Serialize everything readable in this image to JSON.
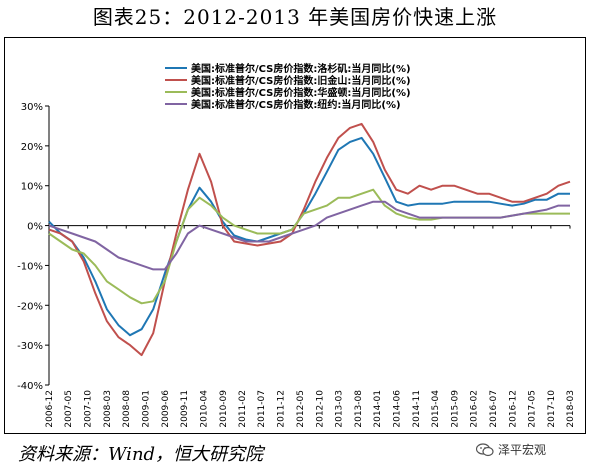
{
  "figure": {
    "title": "图表25：2012-2013 年美国房价快速上涨",
    "source": "资料来源：Wind，恒大研究院",
    "watermark": "泽平宏观"
  },
  "chart_data": {
    "type": "line",
    "ylabel": "",
    "xlabel": "",
    "ylim": [
      -40,
      30
    ],
    "yticks": [
      -40,
      -30,
      -20,
      -10,
      0,
      10,
      20,
      30
    ],
    "ytick_labels": [
      "-40%",
      "-30%",
      "-20%",
      "-10%",
      "0%",
      "10%",
      "20%",
      "30%"
    ],
    "grid": false,
    "legend_position": "top",
    "x": [
      "2006-12",
      "2007-03",
      "2007-06",
      "2007-09",
      "2007-12",
      "2008-03",
      "2008-06",
      "2008-09",
      "2008-12",
      "2009-03",
      "2009-06",
      "2009-09",
      "2009-12",
      "2010-03",
      "2010-06",
      "2010-09",
      "2010-12",
      "2011-03",
      "2011-06",
      "2011-09",
      "2011-12",
      "2012-03",
      "2012-06",
      "2012-09",
      "2012-12",
      "2013-03",
      "2013-06",
      "2013-09",
      "2013-12",
      "2014-03",
      "2014-06",
      "2014-09",
      "2014-12",
      "2015-03",
      "2015-06",
      "2015-09",
      "2015-12",
      "2016-03",
      "2016-06",
      "2016-09",
      "2016-12",
      "2017-03",
      "2017-06",
      "2017-09",
      "2017-12",
      "2018-03"
    ],
    "xtick_labels": [
      "2006-12",
      "2007-05",
      "2007-10",
      "2008-03",
      "2008-08",
      "2009-01",
      "2009-06",
      "2009-11",
      "2010-04",
      "2010-09",
      "2011-02",
      "2011-07",
      "2011-12",
      "2012-05",
      "2012-10",
      "2013-03",
      "2013-08",
      "2014-01",
      "2014-06",
      "2014-11",
      "2015-04",
      "2015-09",
      "2016-02",
      "2016-07",
      "2016-12",
      "2017-05",
      "2017-10",
      "2018-03"
    ],
    "series": [
      {
        "name": "美国:标准普尔/CS房价指数:洛杉矶:当月同比(%)",
        "color": "#1f77b4",
        "values": [
          1,
          -2,
          -4,
          -8,
          -14,
          -21,
          -25,
          -27.5,
          -26,
          -21,
          -12,
          -4,
          4,
          9.5,
          6,
          1,
          -2.5,
          -3.5,
          -4,
          -3,
          -2,
          -1,
          3,
          8,
          13.5,
          19,
          21,
          22,
          18,
          12,
          6,
          5,
          5.5,
          5.5,
          5.5,
          6,
          6,
          6,
          6,
          5.5,
          5,
          5.5,
          6.5,
          6.5,
          8,
          8
        ]
      },
      {
        "name": "美国:标准普尔/CS房价指数:旧金山:当月同比(%)",
        "color": "#c0504d",
        "values": [
          -1,
          -2,
          -4,
          -9,
          -17,
          -24,
          -28,
          -30,
          -32.5,
          -27,
          -14,
          -2,
          9,
          18,
          11,
          0,
          -4,
          -4.5,
          -5,
          -4.5,
          -4,
          -2,
          4,
          11,
          17,
          22,
          24.5,
          25.5,
          21,
          14,
          9,
          8,
          10,
          9,
          10,
          10,
          9,
          8,
          8,
          7,
          6,
          6,
          7,
          8,
          10,
          11
        ]
      },
      {
        "name": "美国:标准普尔/CS房价指数:华盛顿:当月同比(%)",
        "color": "#9bbb59",
        "values": [
          -2,
          -4,
          -6,
          -7,
          -10,
          -14,
          -16,
          -18,
          -19.5,
          -19,
          -14,
          -4,
          4,
          7,
          5,
          2,
          0,
          -1,
          -2,
          -2,
          -2,
          -1,
          3,
          4,
          5,
          7,
          7,
          8,
          9,
          5,
          3,
          2,
          1.5,
          1.5,
          2,
          2,
          2,
          2,
          2,
          2,
          2.5,
          3,
          3,
          3,
          3,
          3
        ]
      },
      {
        "name": "美国:标准普尔/CS房价指数:纽约:当月同比(%)",
        "color": "#8064a2",
        "values": [
          0,
          -1,
          -2,
          -3,
          -4,
          -6,
          -8,
          -9,
          -10,
          -11,
          -11,
          -7,
          -2,
          0,
          -1,
          -2,
          -3,
          -4,
          -4,
          -4,
          -3,
          -2,
          -1,
          0,
          2,
          3,
          4,
          5,
          6,
          6,
          4,
          3,
          2,
          2,
          2,
          2,
          2,
          2,
          2,
          2,
          2.5,
          3,
          3.5,
          4,
          5,
          5
        ]
      }
    ]
  }
}
